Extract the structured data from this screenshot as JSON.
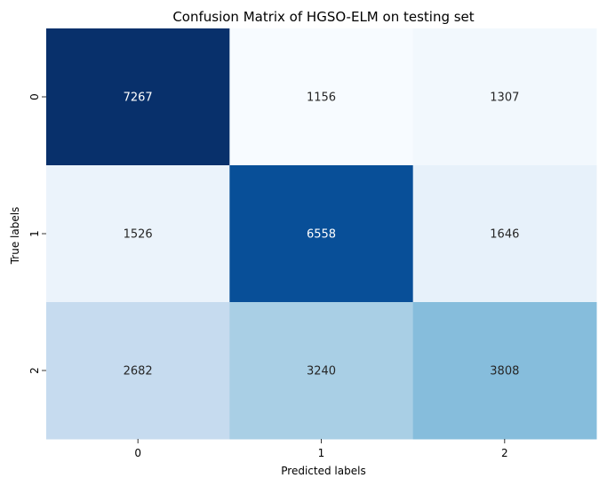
{
  "chart_data": {
    "type": "heatmap",
    "title": "Confusion Matrix of HGSO-ELM on testing set",
    "xlabel": "Predicted labels",
    "ylabel": "True labels",
    "x_categories": [
      "0",
      "1",
      "2"
    ],
    "y_categories": [
      "0",
      "1",
      "2"
    ],
    "values": [
      [
        7267,
        1156,
        1307
      ],
      [
        1526,
        6558,
        1646
      ],
      [
        2682,
        3240,
        3808
      ]
    ],
    "colormap": "Blues",
    "colorbar": false,
    "annotations": true
  }
}
